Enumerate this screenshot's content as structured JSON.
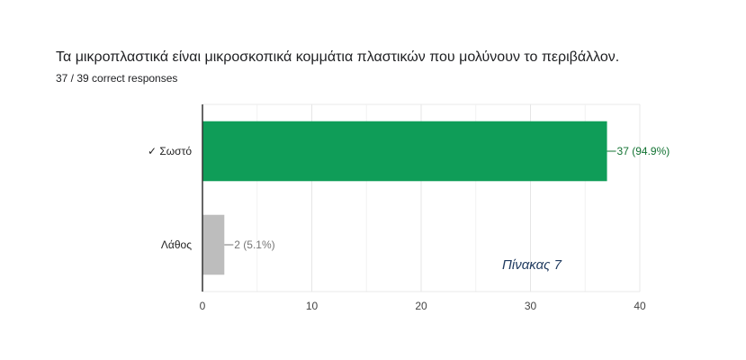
{
  "question": {
    "title": "Τα μικροπλαστικά είναι μικροσκοπικά κομμάτια πλαστικών που μολύνουν το περιβάλλον.",
    "subtitle": "37 / 39 correct responses"
  },
  "colors": {
    "correct": "#0f9d58",
    "incorrect": "#bdbdbd",
    "correct_label": "#137333",
    "incorrect_label": "#757575",
    "grid": "#e8e8e8",
    "axis": "#333333"
  },
  "chart_data": {
    "type": "bar",
    "orientation": "horizontal",
    "categories": [
      "✓ Σωστό",
      "Λάθος"
    ],
    "values": [
      37,
      2
    ],
    "data_labels": [
      "37 (94.9%)",
      "2 (5.1%)"
    ],
    "xlim": [
      0,
      40
    ],
    "xticks": [
      0,
      10,
      20,
      30,
      40
    ],
    "grid": true,
    "annotation": "Πίνακας 7"
  }
}
